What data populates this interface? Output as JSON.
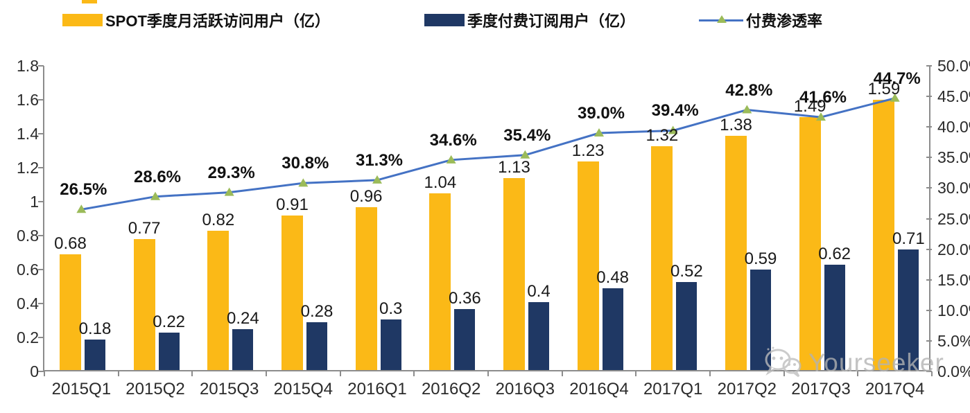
{
  "legend": {
    "items": [
      {
        "label": "SPOT季度月活跃访问用户（亿）",
        "color": "#FBB917",
        "type": "bar"
      },
      {
        "label": "季度付费订阅用户（亿）",
        "color": "#1F3864",
        "type": "bar"
      },
      {
        "label": "付费渗透率",
        "color": "#4472C4",
        "marker_color": "#9BBB59",
        "type": "line"
      }
    ]
  },
  "chart_data": {
    "type": "bar",
    "subtype": "grouped-bars-with-line",
    "categories": [
      "2015Q1",
      "2015Q2",
      "2015Q3",
      "2015Q4",
      "2016Q1",
      "2016Q2",
      "2016Q3",
      "2016Q4",
      "2017Q1",
      "2017Q2",
      "2017Q3",
      "2017Q4"
    ],
    "series": [
      {
        "name": "SPOT季度月活跃访问用户（亿）",
        "type": "bar",
        "axis": "left",
        "color": "#FBB917",
        "values": [
          0.68,
          0.77,
          0.82,
          0.91,
          0.96,
          1.04,
          1.13,
          1.23,
          1.32,
          1.38,
          1.49,
          1.59
        ],
        "labels": [
          "0.68",
          "0.77",
          "0.82",
          "0.91",
          "0.96",
          "1.04",
          "1.13",
          "1.23",
          "1.32",
          "1.38",
          "1.49",
          "1.59"
        ]
      },
      {
        "name": "季度付费订阅用户（亿）",
        "type": "bar",
        "axis": "left",
        "color": "#1F3864",
        "values": [
          0.18,
          0.22,
          0.24,
          0.28,
          0.3,
          0.36,
          0.4,
          0.48,
          0.52,
          0.59,
          0.62,
          0.71
        ],
        "labels": [
          "0.18",
          "0.22",
          "0.24",
          "0.28",
          "0.3",
          "0.36",
          "0.4",
          "0.48",
          "0.52",
          "0.59",
          "0.62",
          "0.71"
        ]
      },
      {
        "name": "付费渗透率",
        "type": "line",
        "axis": "right",
        "color": "#4472C4",
        "marker": "triangle",
        "marker_color": "#9BBB59",
        "values": [
          26.5,
          28.6,
          29.3,
          30.8,
          31.3,
          34.6,
          35.4,
          39.0,
          39.4,
          42.8,
          41.6,
          44.7
        ],
        "labels": [
          "26.5%",
          "28.6%",
          "29.3%",
          "30.8%",
          "31.3%",
          "34.6%",
          "35.4%",
          "39.0%",
          "39.4%",
          "42.8%",
          "41.6%",
          "44.7%"
        ]
      }
    ],
    "left_axis": {
      "min": 0,
      "max": 1.8,
      "step": 0.2,
      "ticks": [
        "0",
        "0.2",
        "0.4",
        "0.6",
        "0.8",
        "1",
        "1.2",
        "1.4",
        "1.6",
        "1.8"
      ]
    },
    "right_axis": {
      "min": 0,
      "max": 50,
      "step": 5,
      "ticks": [
        "0.0%",
        "5.0%",
        "10.0%",
        "15.0%",
        "20.0%",
        "25.0%",
        "30.0%",
        "35.0%",
        "40.0%",
        "45.0%",
        "50.0%"
      ]
    },
    "grid": false,
    "legend_position": "top",
    "title": ""
  },
  "watermark": {
    "text": "Yourseeker",
    "icon": "wechat-icon",
    "color": "#b3b3b3"
  }
}
